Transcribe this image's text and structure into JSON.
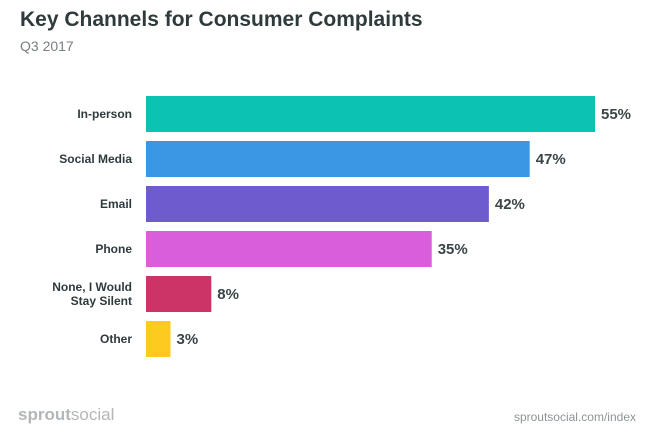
{
  "header": {
    "title": "Key Channels for Consumer Complaints",
    "subtitle": "Q3 2017"
  },
  "footer": {
    "brand_part1": "sprout",
    "brand_part2": "social",
    "source": "sproutsocial.com/index"
  },
  "chart_data": {
    "type": "bar",
    "orientation": "horizontal",
    "title": "Key Channels for Consumer Complaints",
    "subtitle": "Q3 2017",
    "categories": [
      [
        "In-person"
      ],
      [
        "Social Media"
      ],
      [
        "Email"
      ],
      [
        "Phone"
      ],
      [
        "None, I Would",
        "Stay Silent"
      ],
      [
        "Other"
      ]
    ],
    "values": [
      55,
      47,
      42,
      35,
      8,
      3
    ],
    "value_labels": [
      "55%",
      "47%",
      "42%",
      "35%",
      "8%",
      "3%"
    ],
    "colors": [
      "#0cc2b0",
      "#3b96e3",
      "#6e5ccf",
      "#d95edb",
      "#cc3366",
      "#fccb1d"
    ],
    "xlim": [
      0,
      55
    ],
    "grid": false
  }
}
